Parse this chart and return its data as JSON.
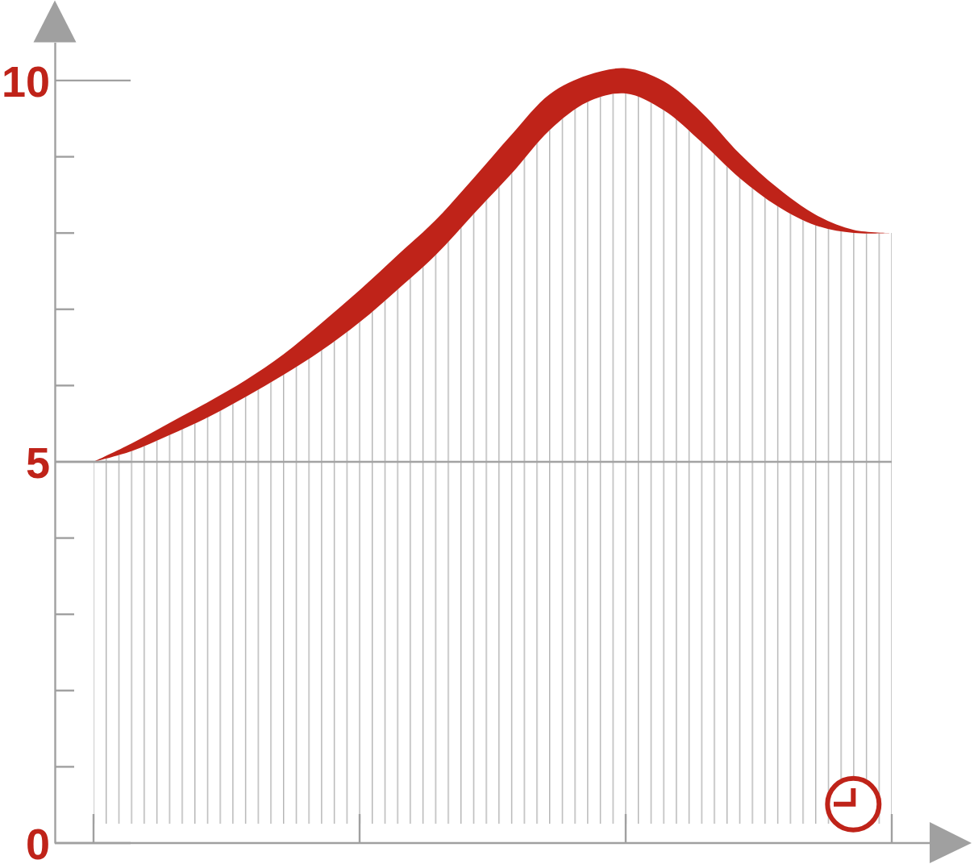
{
  "chart_data": {
    "type": "area",
    "stacked": true,
    "categories": [
      null,
      null,
      null,
      null,
      null,
      null,
      null,
      null,
      null,
      null,
      null,
      null,
      null,
      null,
      null,
      null,
      null,
      null,
      null,
      null,
      null,
      null
    ],
    "ylim": [
      0,
      10.5
    ],
    "yticks": [
      0,
      5,
      10
    ],
    "tick_labels": "y",
    "ref_lines": [
      {
        "axis": "y",
        "value": 5,
        "color": "#a3a3a3"
      }
    ],
    "series": [
      {
        "color": "#b4b4b4",
        "values": [
          5.0,
          5.14,
          5.35,
          5.58,
          5.85,
          6.14,
          6.46,
          6.83,
          7.26,
          7.71,
          8.25,
          8.78,
          9.35,
          9.72,
          9.83,
          9.61,
          9.19,
          8.72,
          8.35,
          8.1,
          8.0,
          8.0
        ]
      },
      {
        "color": "#bf2319",
        "values": [
          0,
          0.1,
          0.16,
          0.2,
          0.22,
          0.27,
          0.36,
          0.42,
          0.45,
          0.46,
          0.47,
          0.51,
          0.47,
          0.35,
          0.33,
          0.38,
          0.39,
          0.32,
          0.24,
          0.14,
          0.04,
          0
        ]
      }
    ]
  }
}
